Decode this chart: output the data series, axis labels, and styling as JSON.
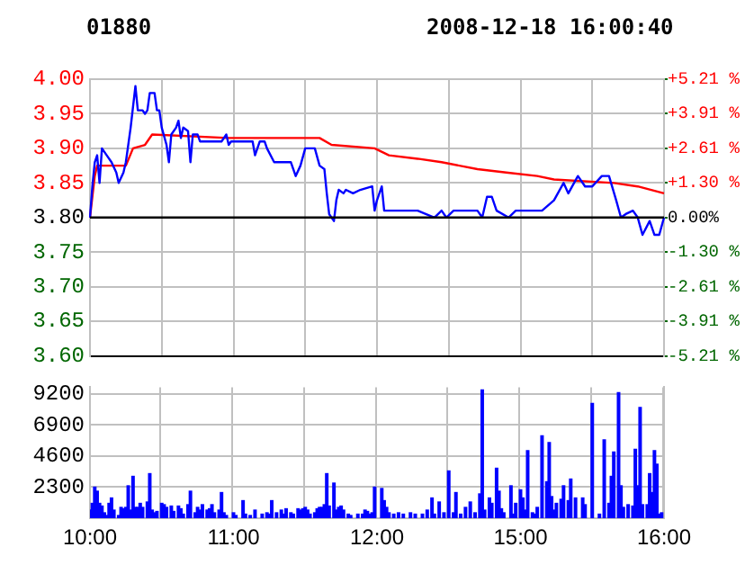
{
  "chart_data": [
    {
      "type": "line",
      "title": "01880",
      "subtitle": "2008-12-18 16:00:40",
      "marker": "none",
      "grid": true,
      "tick_labels": [
        "y",
        "y2"
      ],
      "categories": [
        null,
        null,
        null,
        null,
        null,
        null,
        null,
        null,
        null,
        null,
        null,
        null,
        null,
        null,
        null,
        null,
        null,
        null,
        null,
        null,
        null,
        null,
        null,
        null,
        null,
        null,
        null,
        null,
        null,
        null,
        null,
        null,
        null,
        null,
        null,
        null,
        null,
        null,
        null,
        null,
        null,
        null,
        null,
        null,
        null,
        null,
        null,
        null,
        null,
        null,
        null,
        null,
        null,
        null,
        null,
        null,
        null,
        null,
        null,
        null,
        null,
        null,
        null,
        null,
        null,
        null,
        null,
        null,
        null,
        null,
        null,
        null,
        null,
        null,
        null,
        null,
        null,
        null,
        null,
        null,
        null,
        null,
        null,
        null,
        null,
        null,
        null,
        null,
        null,
        null,
        null,
        null,
        null,
        null,
        null,
        null,
        null,
        null,
        null,
        null,
        null,
        null,
        null,
        null,
        null,
        null,
        null,
        null,
        null,
        null,
        null,
        null,
        null,
        null,
        null,
        null,
        null,
        null,
        null,
        null,
        null,
        null,
        null,
        null,
        null,
        null,
        null,
        null,
        null,
        null,
        null,
        null,
        null,
        null,
        null,
        null,
        null,
        null,
        null,
        null,
        null,
        null,
        null,
        null,
        null,
        null,
        null,
        null,
        null,
        null,
        null,
        null,
        null,
        null,
        null,
        null,
        null,
        null,
        null,
        null,
        null,
        null,
        null,
        null,
        null,
        null,
        null,
        null,
        null,
        null,
        null,
        null,
        null,
        null,
        null,
        null,
        null,
        null,
        null,
        null,
        null,
        null,
        null,
        null,
        null,
        null,
        null,
        null,
        null,
        null,
        null,
        null,
        null,
        null,
        null,
        null,
        null,
        null,
        null,
        null,
        null,
        null,
        null,
        null,
        null,
        null,
        null,
        null,
        null,
        null,
        null,
        null,
        null,
        null,
        null,
        null,
        null,
        null,
        null,
        null,
        null,
        null,
        null,
        null,
        null,
        null,
        null,
        null,
        null,
        null,
        null,
        null,
        null,
        null,
        null,
        null,
        null,
        null,
        null,
        null,
        null
      ],
      "ylim": [
        3.6,
        4.0
      ],
      "yticks": [
        {
          "value": 3.6,
          "label": "3.60"
        },
        {
          "value": 3.65,
          "label": "3.65"
        },
        {
          "value": 3.7,
          "label": "3.70"
        },
        {
          "value": 3.75,
          "label": "3.75"
        },
        {
          "value": 3.8,
          "label": "3.80"
        },
        {
          "value": 3.85,
          "label": "3.85"
        },
        {
          "value": 3.9,
          "label": "3.90"
        },
        {
          "value": 3.95,
          "label": "3.95"
        },
        {
          "value": 4.0,
          "label": "4.00"
        }
      ],
      "y2lim": [
        -5.21,
        5.21
      ],
      "y2ticks": [
        {
          "value": -5.21,
          "label": "-5.21 %"
        },
        {
          "value": -3.91,
          "label": "-3.91 %"
        },
        {
          "value": -2.61,
          "label": "-2.61 %"
        },
        {
          "value": -1.3,
          "label": "-1.30 %"
        },
        {
          "value": 0,
          "label": "0.00%"
        },
        {
          "value": 1.3,
          "label": "+1.30 %"
        },
        {
          "value": 2.61,
          "label": "+2.61 %"
        },
        {
          "value": 3.91,
          "label": "+3.91 %"
        },
        {
          "value": 5.21,
          "label": "+5.21 %"
        }
      ],
      "ref_lines": [
        {
          "axis": "y",
          "value": 3.8,
          "color": "#000000"
        }
      ],
      "series": [
        {
          "color": "#0000ff",
          "values": [
            3.8,
            3.845,
            3.88,
            3.89,
            3.85,
            3.9,
            null,
            3.89,
            null,
            3.88,
            null,
            3.865,
            3.85,
            null,
            3.865,
            3.88,
            3.905,
            3.93,
            3.96,
            3.99,
            3.955,
            null,
            3.955,
            3.95,
            3.955,
            3.98,
            null,
            3.98,
            3.955,
            3.955,
            3.93,
            null,
            3.905,
            3.88,
            3.92,
            null,
            3.93,
            3.94,
            3.915,
            3.93,
            null,
            3.925,
            3.88,
            3.92,
            null,
            3.92,
            3.91,
            null,
            null,
            null,
            null,
            null,
            null,
            null,
            null,
            3.91,
            null,
            3.92,
            3.905,
            3.91,
            null,
            null,
            null,
            null,
            null,
            null,
            null,
            null,
            3.91,
            3.89,
            null,
            3.91,
            null,
            3.91,
            3.9,
            null,
            null,
            3.88,
            null,
            null,
            null,
            null,
            null,
            null,
            3.88,
            null,
            3.86,
            null,
            3.875,
            null,
            3.9,
            null,
            null,
            null,
            3.9,
            null,
            3.875,
            null,
            3.87,
            3.835,
            3.805,
            null,
            3.795,
            3.825,
            3.84,
            null,
            3.835,
            3.84,
            null,
            null,
            3.835,
            null,
            null,
            3.84,
            null,
            null,
            null,
            null,
            3.845,
            3.81,
            3.825,
            null,
            3.845,
            3.81,
            null,
            null,
            null,
            3.81,
            null,
            null,
            null,
            null,
            null,
            null,
            null,
            null,
            null,
            3.81,
            null,
            null,
            null,
            null,
            null,
            null,
            3.8,
            null,
            null,
            3.81,
            null,
            3.8,
            null,
            null,
            3.81,
            null,
            null,
            null,
            null,
            null,
            null,
            null,
            null,
            null,
            3.81,
            null,
            3.8,
            null,
            3.83,
            null,
            3.83,
            null,
            3.81,
            null,
            null,
            null,
            null,
            3.8,
            null,
            null,
            3.81,
            null,
            null,
            null,
            null,
            null,
            null,
            null,
            null,
            null,
            null,
            3.81,
            null,
            null,
            null,
            null,
            3.825,
            null,
            null,
            null,
            3.85,
            null,
            3.835,
            null,
            null,
            null,
            3.86,
            null,
            null,
            3.845,
            null,
            null,
            3.845,
            null,
            null,
            null,
            3.86,
            null,
            null,
            3.86,
            null,
            null,
            3.825,
            null,
            3.8,
            null,
            3.805,
            null,
            null,
            3.81,
            null,
            3.8,
            null,
            3.775,
            null,
            null,
            3.795,
            null,
            3.775,
            null,
            3.775,
            null,
            3.8
          ]
        },
        {
          "color": "#ff0000",
          "values": [
            3.8,
            null,
            3.86,
            3.875,
            null,
            null,
            null,
            null,
            null,
            null,
            null,
            null,
            null,
            null,
            null,
            3.875,
            null,
            null,
            3.9,
            null,
            null,
            null,
            null,
            3.905,
            null,
            null,
            3.92,
            null,
            null,
            null,
            null,
            null,
            null,
            null,
            null,
            null,
            null,
            null,
            null,
            null,
            null,
            null,
            null,
            null,
            null,
            null,
            null,
            null,
            null,
            null,
            null,
            null,
            null,
            null,
            null,
            null,
            null,
            null,
            3.915,
            null,
            null,
            null,
            null,
            null,
            null,
            null,
            null,
            null,
            null,
            null,
            null,
            null,
            null,
            null,
            null,
            null,
            null,
            null,
            null,
            null,
            null,
            null,
            null,
            3.915,
            null,
            null,
            null,
            null,
            null,
            null,
            null,
            null,
            null,
            null,
            null,
            null,
            3.915,
            null,
            null,
            null,
            null,
            3.905,
            null,
            null,
            null,
            null,
            null,
            null,
            null,
            null,
            null,
            null,
            null,
            null,
            null,
            null,
            null,
            null,
            null,
            3.9,
            null,
            null,
            null,
            null,
            null,
            3.89,
            null,
            null,
            null,
            null,
            null,
            null,
            null,
            null,
            null,
            null,
            null,
            3.885,
            null,
            null,
            null,
            null,
            null,
            null,
            null,
            null,
            null,
            3.88,
            null,
            null,
            null,
            null,
            null,
            null,
            null,
            null,
            null,
            null,
            null,
            null,
            null,
            null,
            3.87,
            null,
            null,
            null,
            null,
            null,
            null,
            null,
            null,
            null,
            null,
            null,
            3.865,
            null,
            null,
            null,
            null,
            null,
            null,
            null,
            null,
            null,
            null,
            null,
            null,
            3.86,
            null,
            null,
            null,
            null,
            null,
            null,
            3.855,
            null,
            null,
            null,
            null,
            null,
            null,
            null,
            null,
            null,
            null,
            null,
            null,
            null,
            null,
            null,
            null,
            null,
            null,
            null,
            null,
            null,
            null,
            null,
            null,
            3.85,
            null,
            null,
            null,
            null,
            null,
            null,
            null,
            null,
            null,
            3.845,
            null,
            null,
            null,
            null,
            null,
            null,
            null,
            null,
            null,
            null,
            3.835
          ]
        }
      ]
    },
    {
      "type": "bar",
      "grid": true,
      "categories": [
        "10:00",
        null,
        null,
        null,
        null,
        null,
        null,
        null,
        null,
        null,
        null,
        null,
        null,
        null,
        null,
        null,
        null,
        null,
        null,
        null,
        null,
        null,
        null,
        null,
        null,
        null,
        null,
        null,
        null,
        null,
        null,
        null,
        null,
        null,
        null,
        null,
        null,
        null,
        null,
        null,
        null,
        null,
        null,
        null,
        null,
        null,
        null,
        null,
        null,
        null,
        null,
        null,
        null,
        null,
        null,
        null,
        null,
        null,
        null,
        null,
        "11:00",
        null,
        null,
        null,
        null,
        null,
        null,
        null,
        null,
        null,
        null,
        null,
        null,
        null,
        null,
        null,
        null,
        null,
        null,
        null,
        null,
        null,
        null,
        null,
        null,
        null,
        null,
        null,
        null,
        null,
        null,
        null,
        null,
        null,
        null,
        null,
        null,
        null,
        null,
        null,
        null,
        null,
        null,
        null,
        null,
        null,
        null,
        null,
        null,
        null,
        null,
        null,
        null,
        null,
        null,
        null,
        null,
        null,
        null,
        null,
        "12:00",
        null,
        null,
        null,
        null,
        null,
        null,
        null,
        null,
        null,
        null,
        null,
        null,
        null,
        null,
        null,
        null,
        null,
        null,
        null,
        null,
        null,
        null,
        null,
        null,
        null,
        null,
        null,
        null,
        null,
        null,
        null,
        null,
        null,
        null,
        null,
        null,
        null,
        null,
        null,
        null,
        null,
        null,
        null,
        null,
        null,
        null,
        null,
        null,
        null,
        null,
        null,
        null,
        null,
        null,
        null,
        null,
        null,
        null,
        null,
        "15:00",
        null,
        null,
        null,
        null,
        null,
        null,
        null,
        null,
        null,
        null,
        null,
        null,
        null,
        null,
        null,
        null,
        null,
        null,
        null,
        null,
        null,
        null,
        null,
        null,
        null,
        null,
        null,
        null,
        null,
        null,
        null,
        null,
        null,
        null,
        null,
        null,
        null,
        null,
        null,
        null,
        null,
        null,
        null,
        null,
        null,
        null,
        null,
        null,
        null,
        null,
        null,
        null,
        null,
        null,
        null,
        null,
        null,
        null,
        null,
        "16:00"
      ],
      "ylim": [
        0,
        9700
      ],
      "yticks": [
        2300,
        4600,
        6900,
        9200
      ],
      "series": [
        {
          "color": "#0000ff",
          "values": [
            600,
            1100,
            2300,
            2000,
            1100,
            900,
            400,
            200,
            1100,
            1500,
            600,
            null,
            200,
            800,
            700,
            800,
            2400,
            600,
            3100,
            800,
            800,
            1100,
            800,
            null,
            1200,
            3300,
            600,
            400,
            500,
            null,
            1100,
            1000,
            800,
            null,
            900,
            500,
            null,
            900,
            700,
            300,
            null,
            1000,
            2000,
            null,
            400,
            800,
            600,
            1000,
            null,
            600,
            700,
            1000,
            400,
            null,
            600,
            1900,
            400,
            200,
            null,
            null,
            400,
            200,
            null,
            null,
            1300,
            300,
            null,
            200,
            null,
            600,
            null,
            null,
            300,
            null,
            400,
            300,
            1300,
            null,
            400,
            null,
            600,
            300,
            700,
            null,
            400,
            300,
            null,
            700,
            600,
            700,
            800,
            600,
            300,
            null,
            400,
            700,
            800,
            800,
            1000,
            3300,
            900,
            null,
            2600,
            600,
            800,
            900,
            600,
            null,
            300,
            200,
            null,
            null,
            300,
            null,
            300,
            600,
            500,
            300,
            400,
            2300,
            null,
            null,
            2200,
            1300,
            800,
            400,
            null,
            300,
            null,
            400,
            null,
            300,
            null,
            null,
            400,
            null,
            300,
            null,
            null,
            300,
            null,
            600,
            null,
            1500,
            300,
            null,
            1200,
            null,
            400,
            null,
            3500,
            null,
            400,
            1900,
            null,
            300,
            null,
            800,
            null,
            1200,
            null,
            400,
            null,
            1800,
            9500,
            600,
            null,
            1500,
            1100,
            null,
            3700,
            2000,
            700,
            400,
            null,
            null,
            2400,
            300,
            1100,
            null,
            2100,
            1500,
            600,
            5000,
            null,
            400,
            300,
            800,
            null,
            6100,
            null,
            2700,
            5600,
            1600,
            600,
            1100,
            null,
            1400,
            2400,
            null,
            1300,
            2900,
            null,
            1500,
            null,
            null,
            1500,
            1000,
            null,
            null,
            8500,
            null,
            null,
            300,
            null,
            5800,
            null,
            1100,
            3100,
            4900,
            null,
            9300,
            2400,
            800,
            null,
            1000,
            null,
            900,
            5100,
            2400,
            8200,
            1000,
            null,
            1000,
            3300,
            1900,
            5000,
            4000,
            300,
            400,
            null
          ]
        }
      ]
    }
  ]
}
